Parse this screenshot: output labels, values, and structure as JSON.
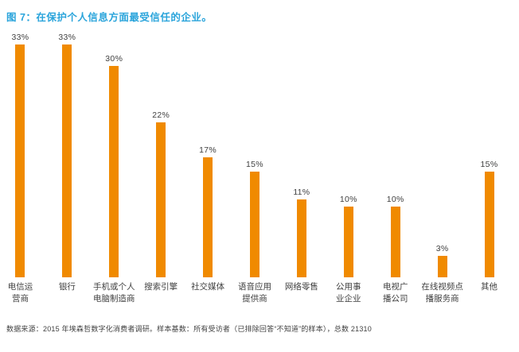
{
  "title": "图 7：在保护个人信息方面最受信任的企业。",
  "footer": "数据来源：2015 年埃森哲数字化消费者调研。样本基数：所有受访者（已排除回答“不知道”的样本），总数 21310",
  "colors": {
    "bar": "#F08A00",
    "title": "#2AA4DB",
    "text": "#3F3F3F"
  },
  "chart_data": {
    "type": "bar",
    "title": "图 7：在保护个人信息方面最受信任的企业。",
    "categories": [
      "电信运营商",
      "银行",
      "手机或个人电脑制造商",
      "搜索引擎",
      "社交媒体",
      "语音应用提供商",
      "网络零售",
      "公用事业企业",
      "电视广播公司",
      "在线视频点播服务商",
      "其他"
    ],
    "category_display": [
      "电信运\n营商",
      "银行",
      "手机或个人\n电脑制造商",
      "搜索引擎",
      "社交媒体",
      "语音应用\n提供商",
      "网络零售",
      "公用事\n业企业",
      "电视广\n播公司",
      "在线视频点\n播服务商",
      "其他"
    ],
    "values": [
      33,
      33,
      30,
      22,
      17,
      15,
      11,
      10,
      10,
      3,
      15
    ],
    "value_labels": [
      "33%",
      "33%",
      "30%",
      "22%",
      "17%",
      "15%",
      "11%",
      "10%",
      "10%",
      "3%",
      "15%"
    ],
    "unit": "%",
    "ylim": [
      0,
      35
    ],
    "grid": false,
    "legend": false,
    "bar_color": "#F08A00",
    "source_note": "数据来源：2015 年埃森哲数字化消费者调研。样本基数：所有受访者（已排除回答“不知道”的样本），总数 21310"
  }
}
